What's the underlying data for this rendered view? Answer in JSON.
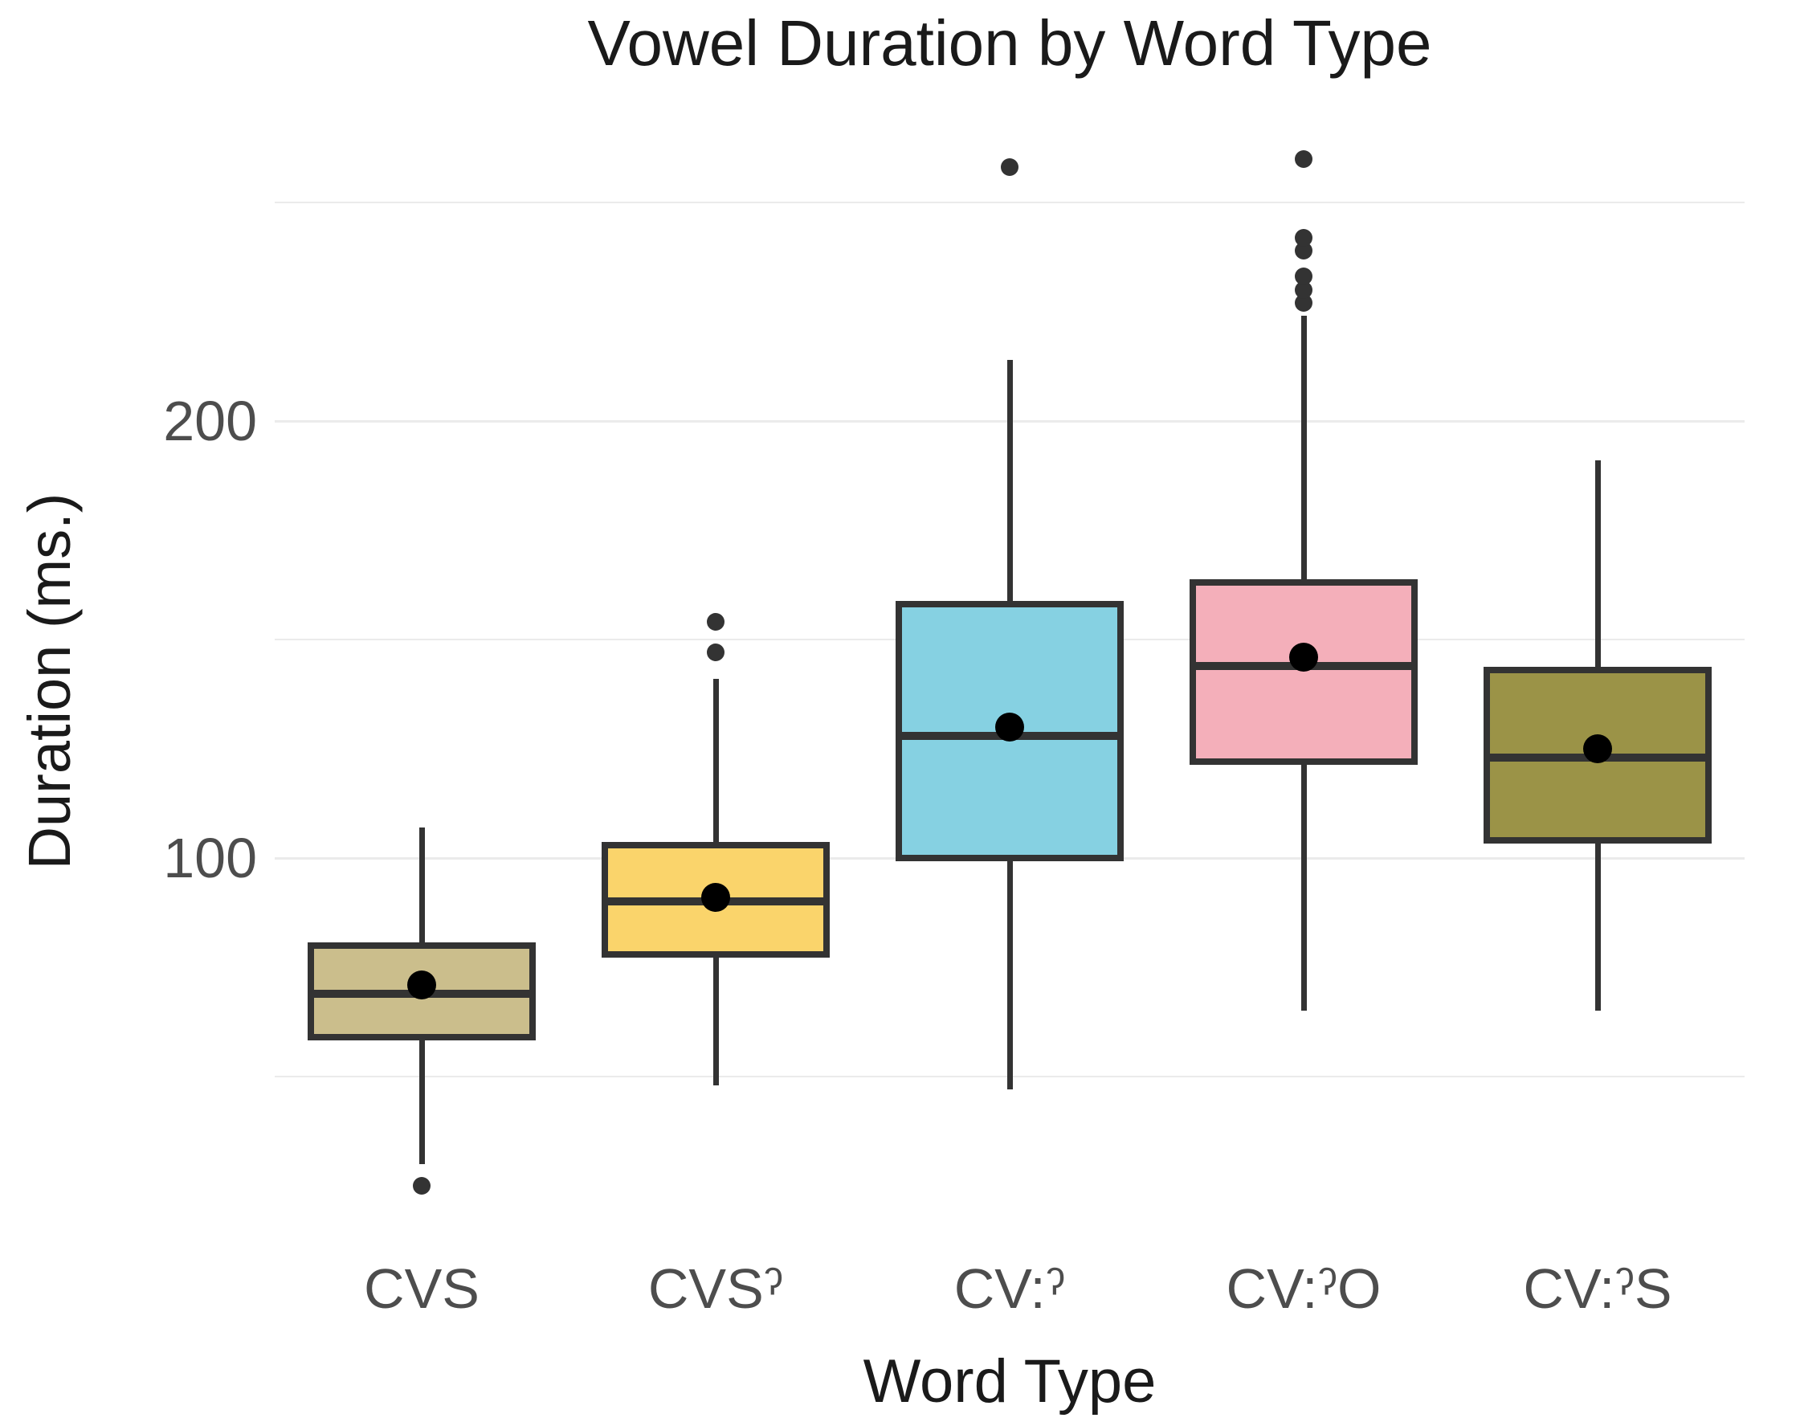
{
  "title": "Vowel Duration by Word Type",
  "chart_data": {
    "type": "boxplot",
    "title": "Vowel Duration by Word Type",
    "xlabel": "Word Type",
    "ylabel": "Duration (ms.)",
    "ylim": [
      15,
      272
    ],
    "y_ticks": [
      200,
      100
    ],
    "y_major_gridlines": [
      100,
      200
    ],
    "y_minor_gridlines": [
      50,
      150,
      250
    ],
    "grid": "on",
    "legend": "none",
    "categories": [
      "CVS",
      "CVSˀ",
      "CV:ˀ",
      "CV:ˀO",
      "CV:ˀS"
    ],
    "series": [
      {
        "category": "CVS",
        "fill": "#CBBE8C",
        "whisker_low": 30,
        "q1": 59,
        "median": 69,
        "mean": 71,
        "q3": 80,
        "whisker_high": 107,
        "outliers": [
          25
        ]
      },
      {
        "category": "CVSˀ",
        "fill": "#FAD46B",
        "whisker_low": 48,
        "q1": 78,
        "median": 90,
        "mean": 91,
        "q3": 103,
        "whisker_high": 141,
        "outliers": [
          147,
          154
        ]
      },
      {
        "category": "CV:ˀ",
        "fill": "#86D1E2",
        "whisker_low": 47,
        "q1": 100,
        "median": 128,
        "mean": 130,
        "q3": 158,
        "whisker_high": 214,
        "outliers": [
          258
        ]
      },
      {
        "category": "CV:ˀO",
        "fill": "#F4AFBA",
        "whisker_low": 65,
        "q1": 122,
        "median": 144,
        "mean": 146,
        "q3": 163,
        "whisker_high": 224,
        "outliers": [
          227,
          230,
          233,
          239,
          242,
          260
        ]
      },
      {
        "category": "CV:ˀS",
        "fill": "#9B9347",
        "whisker_low": 65,
        "q1": 104,
        "median": 123,
        "mean": 125,
        "q3": 143,
        "whisker_high": 191,
        "outliers": []
      }
    ]
  },
  "colors": {
    "background": "#FFFFFF",
    "grid": "#EBEBEB",
    "box_border": "#333333",
    "median_line": "#333333",
    "mean_dot": "#000000",
    "outlier_dot": "#333333",
    "tick_text": "#4D4D4D",
    "title_text": "#1A1A1A"
  }
}
